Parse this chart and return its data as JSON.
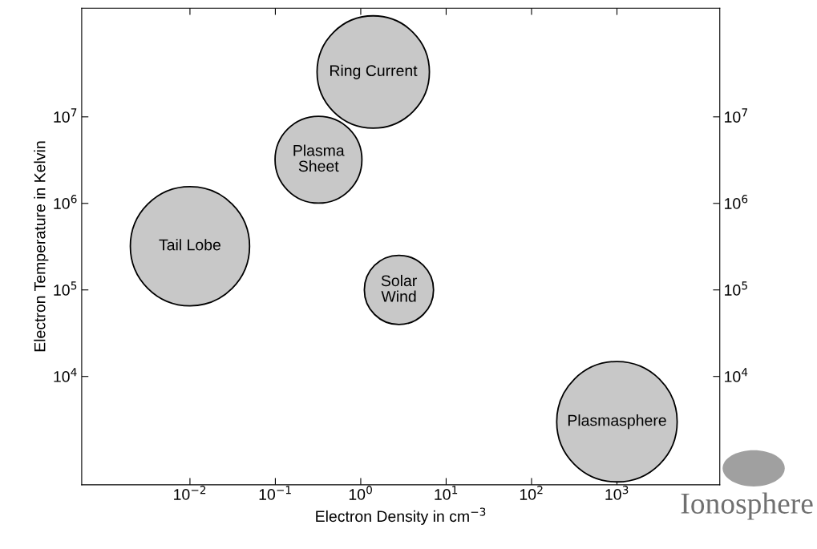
{
  "chart_data": {
    "type": "bubble",
    "xlabel": "Electron Density in cm$^{−3}$",
    "ylabel": "Electron Temperature in Kelvin",
    "x": [
      1.4,
      0.32,
      0.01,
      2.8,
      1000
    ],
    "values": [
      33000000.0,
      3200000.0,
      320000.0,
      100000.0,
      3000.0
    ],
    "sizes": [
      0.87,
      0.52,
      0.98,
      0.33,
      1
    ],
    "color": "#c8c8c8",
    "log": "xy",
    "xlim": [
      0.00054,
      16000
    ],
    "ylim": [
      560,
      180000000.0
    ],
    "xticks": [
      {
        "value": 0.01,
        "label": "10$^{−2}$"
      },
      {
        "value": 0.1,
        "label": "10$^{−1}$"
      },
      {
        "value": 1,
        "label": "10$^{0}$"
      },
      {
        "value": 10,
        "label": "10$^{1}$"
      },
      {
        "value": 100,
        "label": "10$^{2}$"
      },
      {
        "value": 1000,
        "label": "10$^{3}$"
      }
    ],
    "yticks": [
      {
        "value": 10000,
        "label": "10$^{4}$"
      },
      {
        "value": 100000,
        "label": "10$^{5}$"
      },
      {
        "value": 1000000,
        "label": "10$^{6}$"
      },
      {
        "value": 10000000,
        "label": "10$^{7}$"
      }
    ],
    "annotations": [
      {
        "text": "Ring Current",
        "x": 1.4,
        "y": 33000000.0
      },
      {
        "text": "Plasma\nSheet",
        "x": 0.32,
        "y": 3200000.0
      },
      {
        "text": "Tail Lobe",
        "x": 0.01,
        "y": 320000.0
      },
      {
        "text": "Solar\nWind",
        "x": 2.8,
        "y": 100000.0
      },
      {
        "text": "Plasmasphere",
        "x": 1000,
        "y": 3000.0
      },
      "Ionosphere"
    ]
  }
}
